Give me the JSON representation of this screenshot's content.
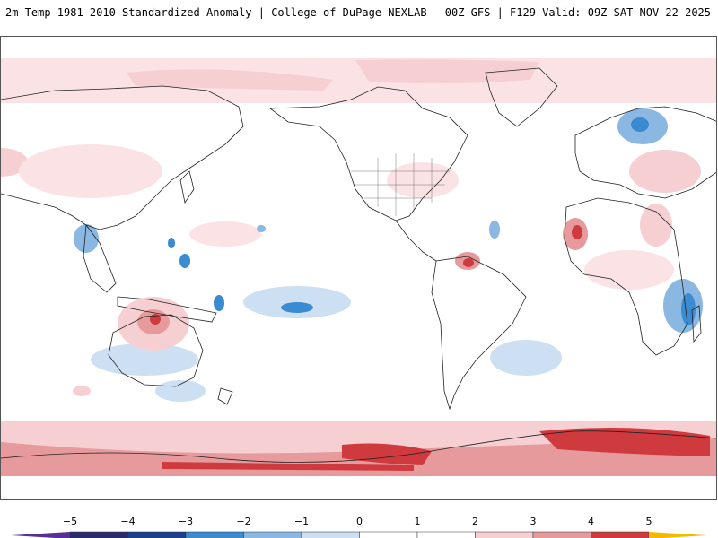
{
  "header": {
    "title_left": "2m Temp 1981-2010 Standardized Anomaly | College of DuPage NEXLAB",
    "title_right": "00Z GFS | F129 Valid: 09Z SAT NOV 22 2025"
  },
  "map": {
    "variable": "2m Temp Standardized Anomaly",
    "model": "GFS",
    "legend": {
      "ticks": [
        "-5",
        "-4",
        "-3",
        "-2",
        "-1",
        "0",
        "1",
        "2",
        "3",
        "4",
        "5"
      ],
      "colors": [
        "#2b2a6e",
        "#1d3f8f",
        "#3a8bd1",
        "#8ab8e2",
        "#cddff2",
        "#ffffff",
        "#ffffff",
        "#f6cfd2",
        "#e79a9c",
        "#cf3a3f",
        "#a5111b"
      ],
      "under_color": "#5a2d9a",
      "over_color": "#f5b800"
    }
  }
}
